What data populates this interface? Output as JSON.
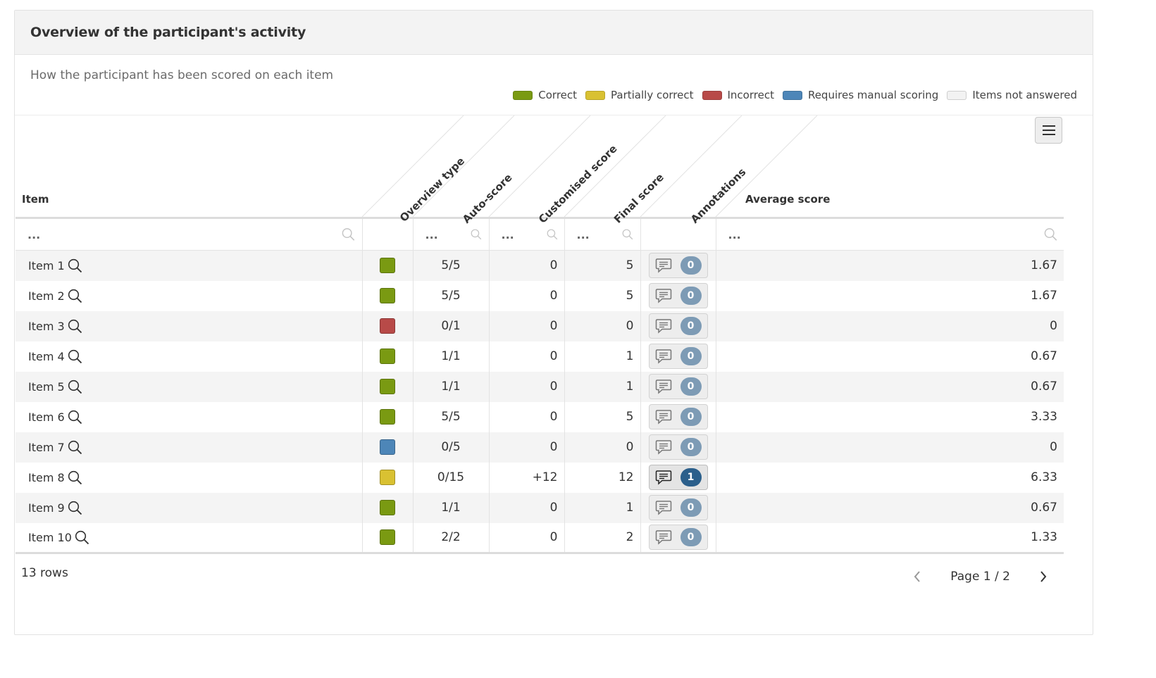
{
  "panel": {
    "title": "Overview of the participant's activity",
    "subtitle": "How the participant has been scored on each item"
  },
  "legend": [
    {
      "label": "Correct",
      "color": "#7a9a12"
    },
    {
      "label": "Partially correct",
      "color": "#d9c132"
    },
    {
      "label": "Incorrect",
      "color": "#b84a48"
    },
    {
      "label": "Requires manual scoring",
      "color": "#4d86b8"
    },
    {
      "label": "Items not answered",
      "color": "#f2f2f2"
    }
  ],
  "columns": {
    "item": "Item",
    "overview_type": "Overview type",
    "auto_score": "Auto-score",
    "customised_score": "Customised score",
    "final_score": "Final score",
    "annotations": "Annotations",
    "average_score": "Average score"
  },
  "filters": {
    "item_placeholder": "...",
    "auto_placeholder": "...",
    "custom_placeholder": "...",
    "final_placeholder": "...",
    "avg_placeholder": "..."
  },
  "rows": [
    {
      "item": "Item 1",
      "type_color": "#7a9a12",
      "auto": "5/5",
      "custom": "0",
      "final": "5",
      "annotations": "0",
      "annot_active": false,
      "avg": "1.67"
    },
    {
      "item": "Item 2",
      "type_color": "#7a9a12",
      "auto": "5/5",
      "custom": "0",
      "final": "5",
      "annotations": "0",
      "annot_active": false,
      "avg": "1.67"
    },
    {
      "item": "Item 3",
      "type_color": "#b84a48",
      "auto": "0/1",
      "custom": "0",
      "final": "0",
      "annotations": "0",
      "annot_active": false,
      "avg": "0"
    },
    {
      "item": "Item 4",
      "type_color": "#7a9a12",
      "auto": "1/1",
      "custom": "0",
      "final": "1",
      "annotations": "0",
      "annot_active": false,
      "avg": "0.67"
    },
    {
      "item": "Item 5",
      "type_color": "#7a9a12",
      "auto": "1/1",
      "custom": "0",
      "final": "1",
      "annotations": "0",
      "annot_active": false,
      "avg": "0.67"
    },
    {
      "item": "Item 6",
      "type_color": "#7a9a12",
      "auto": "5/5",
      "custom": "0",
      "final": "5",
      "annotations": "0",
      "annot_active": false,
      "avg": "3.33"
    },
    {
      "item": "Item 7",
      "type_color": "#4d86b8",
      "auto": "0/5",
      "custom": "0",
      "final": "0",
      "annotations": "0",
      "annot_active": false,
      "avg": "0"
    },
    {
      "item": "Item 8",
      "type_color": "#d9c132",
      "auto": "0/15",
      "custom": "+12",
      "final": "12",
      "annotations": "1",
      "annot_active": true,
      "avg": "6.33"
    },
    {
      "item": "Item 9",
      "type_color": "#7a9a12",
      "auto": "1/1",
      "custom": "0",
      "final": "1",
      "annotations": "0",
      "annot_active": false,
      "avg": "0.67"
    },
    {
      "item": "Item 10",
      "type_color": "#7a9a12",
      "auto": "2/2",
      "custom": "0",
      "final": "2",
      "annotations": "0",
      "annot_active": false,
      "avg": "1.33"
    }
  ],
  "footer": {
    "rows_count": "13 rows",
    "page_label": "Page 1 / 2"
  },
  "icons": {
    "search": "search-icon",
    "comment": "comment-icon",
    "menu": "hamburger-menu-icon",
    "prev": "chevron-left-icon",
    "next": "chevron-right-icon"
  }
}
